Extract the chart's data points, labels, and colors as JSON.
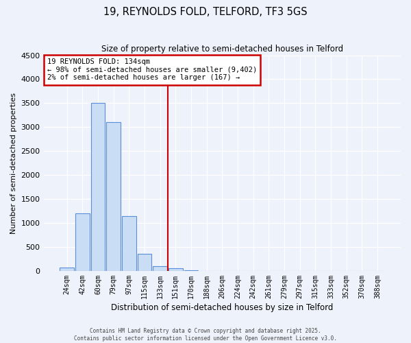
{
  "title": "19, REYNOLDS FOLD, TELFORD, TF3 5GS",
  "subtitle": "Size of property relative to semi-detached houses in Telford",
  "xlabel": "Distribution of semi-detached houses by size in Telford",
  "ylabel": "Number of semi-detached properties",
  "bar_labels": [
    "24sqm",
    "42sqm",
    "60sqm",
    "79sqm",
    "97sqm",
    "115sqm",
    "133sqm",
    "151sqm",
    "170sqm",
    "188sqm",
    "206sqm",
    "224sqm",
    "242sqm",
    "261sqm",
    "279sqm",
    "297sqm",
    "315sqm",
    "333sqm",
    "352sqm",
    "370sqm",
    "388sqm"
  ],
  "bar_values": [
    75,
    1200,
    3500,
    3100,
    1150,
    350,
    100,
    55,
    10,
    5,
    3,
    2,
    1,
    1,
    0,
    0,
    0,
    0,
    0,
    0,
    0
  ],
  "bar_color": "#c9ddf5",
  "bar_edge_color": "#5b8dd9",
  "annotation_title": "19 REYNOLDS FOLD: 134sqm",
  "annotation_line1": "← 98% of semi-detached houses are smaller (9,402)",
  "annotation_line2": "2% of semi-detached houses are larger (167) →",
  "vline_position": 6.5,
  "vline_color": "#cc0000",
  "annotation_box_edgecolor": "#cc0000",
  "ylim": [
    0,
    4500
  ],
  "yticks": [
    0,
    500,
    1000,
    1500,
    2000,
    2500,
    3000,
    3500,
    4000,
    4500
  ],
  "background_color": "#eef2fb",
  "grid_color": "#ffffff",
  "footer1": "Contains HM Land Registry data © Crown copyright and database right 2025.",
  "footer2": "Contains public sector information licensed under the Open Government Licence v3.0."
}
